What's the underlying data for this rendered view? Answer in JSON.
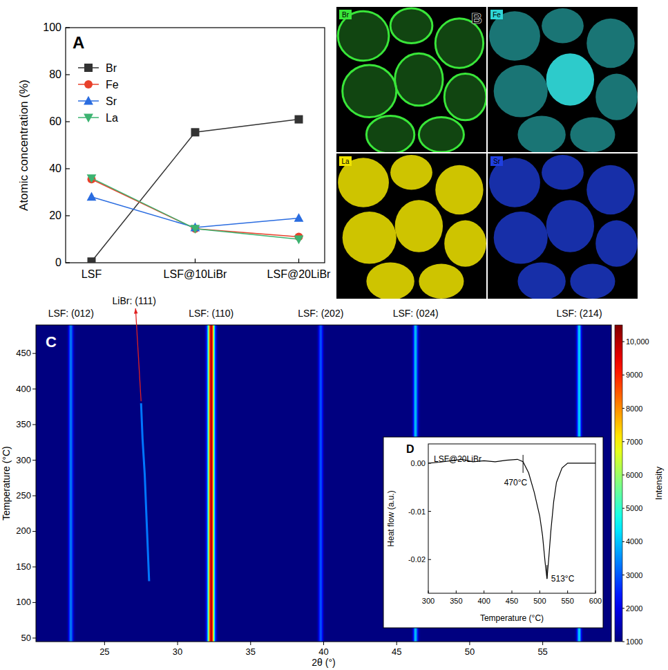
{
  "chart_data": [
    {
      "type": "line",
      "panel": "A",
      "y_label": "Atomic concentration (%)",
      "categories": [
        "LSF",
        "LSF@10LiBr",
        "LSF@20LiBr"
      ],
      "ylim": [
        0,
        100
      ],
      "yticks": [
        0,
        20,
        40,
        60,
        80,
        100
      ],
      "legend": "upper left",
      "series": [
        {
          "name": "Br",
          "color": "#333333",
          "marker": "square",
          "values": [
            0.5,
            55.5,
            61
          ]
        },
        {
          "name": "Fe",
          "color": "#e8412b",
          "marker": "circle",
          "values": [
            35.5,
            14.5,
            11
          ]
        },
        {
          "name": "Sr",
          "color": "#2a6ce0",
          "marker": "triangle-up",
          "values": [
            28,
            15,
            19
          ]
        },
        {
          "name": "La",
          "color": "#3cb371",
          "marker": "triangle-down",
          "values": [
            36,
            14.5,
            10
          ]
        }
      ]
    },
    {
      "type": "element_map",
      "panel": "B",
      "maps": [
        {
          "label": "Br",
          "color": "#39e639"
        },
        {
          "label": "Fe",
          "color": "#2fd6d6"
        },
        {
          "label": "La",
          "color": "#f2e600"
        },
        {
          "label": "Sr",
          "color": "#1f3fe0"
        }
      ]
    },
    {
      "type": "heatmap",
      "panel": "C",
      "x_label": "2θ (°)",
      "y_label": "Temperature (°C)",
      "xlim": [
        20.3,
        59.7
      ],
      "xticks": [
        25,
        30,
        35,
        40,
        45,
        50,
        55
      ],
      "ylim": [
        45,
        490
      ],
      "yticks": [
        50,
        100,
        150,
        200,
        250,
        300,
        350,
        400,
        450
      ],
      "background": 1000,
      "peaks": [
        {
          "label": "LSF: (012)",
          "x": 22.7,
          "intensity": 3500
        },
        {
          "label": "LSF: (110)",
          "x": 32.3,
          "intensity": 10000
        },
        {
          "label": "LSF: (202)",
          "x": 39.8,
          "intensity": 3000
        },
        {
          "label": "LSF: (024)",
          "x": 46.3,
          "intensity": 4200
        },
        {
          "label": "LSF: (214)",
          "x": 57.5,
          "intensity": 4200
        }
      ],
      "moving_peak": {
        "label": "LiBr: (111)",
        "x": [
          28.05,
          27.95,
          27.85,
          27.75,
          27.6,
          27.5
        ],
        "y": [
          130,
          180,
          230,
          280,
          330,
          380
        ],
        "intensity": 3300
      },
      "colorbar": {
        "title": "Intensity",
        "range": [
          1000,
          10500
        ],
        "ticks": [
          1000,
          2000,
          3000,
          4000,
          5000,
          6000,
          7000,
          8000,
          9000,
          {
            "value": 10000,
            "label": "10,000"
          }
        ]
      }
    },
    {
      "type": "line",
      "panel": "D",
      "title": "LSF@20LiBr",
      "x_label": "Temperature (°C)",
      "y_label": "Heat flow (a.u.)",
      "x": [
        300,
        320,
        340,
        360,
        380,
        400,
        420,
        440,
        460,
        470,
        480,
        490,
        500,
        505,
        510,
        513,
        516,
        520,
        525,
        530,
        540,
        550,
        560,
        580,
        600
      ],
      "xlim": [
        300,
        600
      ],
      "xticks": [
        300,
        350,
        400,
        450,
        500,
        550,
        600
      ],
      "ylim": [
        -0.027,
        0.004
      ],
      "yticks": [
        {
          "value": 0,
          "label": "0.00"
        },
        {
          "value": -0.01,
          "label": "-0.01"
        },
        {
          "value": -0.02,
          "label": "-0.02"
        }
      ],
      "series": [
        {
          "color": "#000000",
          "values": [
            0,
            0.0002,
            0.0005,
            0.0008,
            0.0003,
            0.0005,
            0.0003,
            0.0006,
            0.0008,
            0.0003,
            -0.002,
            -0.006,
            -0.011,
            -0.015,
            -0.021,
            -0.024,
            -0.02,
            -0.014,
            -0.008,
            -0.004,
            -0.001,
            0,
            0,
            0,
            0
          ]
        }
      ],
      "annotations": [
        {
          "text": "470°C",
          "x": 470
        },
        {
          "text": "513°C",
          "x": 513
        }
      ]
    }
  ]
}
